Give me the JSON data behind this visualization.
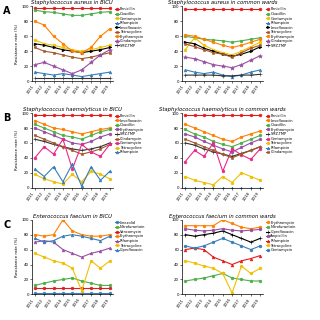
{
  "years": [
    "2011",
    "2012",
    "2013",
    "2014",
    "2015",
    "2016",
    "2017",
    "2018",
    "2019"
  ],
  "panel_A_BICU": {
    "title": "Staphylococcus aureus in BICU",
    "series": {
      "Penicillin": [
        98,
        98,
        98,
        98,
        98,
        98,
        98,
        98,
        98
      ],
      "Oxacillin": [
        95,
        93,
        92,
        90,
        88,
        88,
        90,
        92,
        93
      ],
      "Gentamycin": [
        55,
        50,
        48,
        45,
        42,
        40,
        42,
        45,
        48
      ],
      "Rifampicin": [
        12,
        10,
        8,
        10,
        8,
        6,
        8,
        10,
        12
      ],
      "Levofloxacin": [
        50,
        48,
        45,
        42,
        40,
        38,
        40,
        42,
        45
      ],
      "Tetracycline": [
        45,
        40,
        38,
        35,
        32,
        30,
        32,
        35,
        38
      ],
      "Erythromycin": [
        80,
        75,
        60,
        50,
        40,
        38,
        45,
        60,
        70
      ],
      "Clindamycin": [
        22,
        25,
        20,
        15,
        10,
        15,
        25,
        35,
        42
      ],
      "SMZ-TMP": [
        4,
        4,
        4,
        4,
        4,
        4,
        4,
        4,
        4
      ]
    },
    "colors": {
      "Penicillin": "#e41a1c",
      "Oxacillin": "#4daf4a",
      "Gentamycin": "#f0c000",
      "Rifampicin": "#377eb8",
      "Levofloxacin": "#000000",
      "Tetracycline": "#a65628",
      "Erythromycin": "#ff7f00",
      "Clindamycin": "#984ea3",
      "SMZ-TMP": "#333333"
    },
    "markers": {
      "Penicillin": "o",
      "Oxacillin": "o",
      "Gentamycin": "o",
      "Rifampicin": "^",
      "Levofloxacin": ">",
      "Tetracycline": "s",
      "Erythromycin": "o",
      "Clindamycin": "*",
      "SMZ-TMP": "+"
    },
    "legend_order": [
      "Penicillin",
      "Oxacillin",
      "Gentamycin",
      "Rifampicin",
      "Levofloxacin",
      "Tetracycline",
      "Erythromycin",
      "Clindamycin",
      "SMZ-TMP"
    ]
  },
  "panel_A_common": {
    "title": "Staphylococcus aureus in common wards",
    "series": {
      "Penicillin": [
        97,
        97,
        97,
        97,
        97,
        97,
        97,
        97,
        97
      ],
      "Oxacillin": [
        60,
        58,
        56,
        55,
        54,
        52,
        54,
        56,
        58
      ],
      "Gentamycin": [
        42,
        58,
        48,
        42,
        38,
        35,
        40,
        46,
        52
      ],
      "Rifampicin": [
        15,
        12,
        10,
        12,
        8,
        6,
        8,
        12,
        15
      ],
      "Levofloxacin": [
        52,
        50,
        44,
        40,
        36,
        33,
        36,
        40,
        46
      ],
      "Tetracycline": [
        50,
        46,
        42,
        38,
        36,
        32,
        38,
        44,
        48
      ],
      "Erythromycin": [
        62,
        60,
        56,
        52,
        48,
        45,
        48,
        52,
        56
      ],
      "Clindamycin": [
        32,
        30,
        26,
        22,
        20,
        18,
        22,
        28,
        34
      ],
      "SMZ-TMP": [
        8,
        8,
        8,
        8,
        7,
        7,
        8,
        8,
        9
      ]
    },
    "colors": {
      "Penicillin": "#e41a1c",
      "Oxacillin": "#4daf4a",
      "Gentamycin": "#f0c000",
      "Rifampicin": "#377eb8",
      "Levofloxacin": "#000000",
      "Tetracycline": "#a65628",
      "Erythromycin": "#ff7f00",
      "Clindamycin": "#984ea3",
      "SMZ-TMP": "#333333"
    },
    "markers": {
      "Penicillin": "o",
      "Oxacillin": "o",
      "Gentamycin": "o",
      "Rifampicin": "^",
      "Levofloxacin": ">",
      "Tetracycline": "s",
      "Erythromycin": "o",
      "Clindamycin": "*",
      "SMZ-TMP": "+"
    },
    "legend_order": [
      "Penicillin",
      "Oxacillin",
      "Gentamycin",
      "Rifampicin",
      "Levofloxacin",
      "Tetracycline",
      "Erythromycin",
      "Clindamycin",
      "SMZ-TMP"
    ]
  },
  "panel_B_BICU": {
    "title": "Staphylococcus haemolyticus in BICU",
    "series": {
      "Penicillin": [
        98,
        98,
        98,
        98,
        98,
        98,
        98,
        98,
        98
      ],
      "Levofloxacin": [
        90,
        85,
        80,
        78,
        75,
        72,
        75,
        78,
        80
      ],
      "Oxacillin": [
        85,
        80,
        75,
        70,
        68,
        65,
        70,
        75,
        78
      ],
      "Erythromycin": [
        80,
        75,
        70,
        65,
        60,
        58,
        62,
        68,
        72
      ],
      "SMZ-TMP": [
        65,
        62,
        58,
        55,
        52,
        50,
        52,
        55,
        60
      ],
      "Clindamycin": [
        70,
        65,
        60,
        55,
        50,
        45,
        48,
        52,
        58
      ],
      "Gentamycin": [
        40,
        55,
        45,
        65,
        25,
        58,
        48,
        42,
        58
      ],
      "Tetracycline": [
        18,
        12,
        8,
        5,
        18,
        8,
        22,
        18,
        12
      ],
      "Rifampicin": [
        25,
        15,
        28,
        8,
        32,
        2,
        28,
        10,
        22
      ]
    },
    "colors": {
      "Penicillin": "#e41a1c",
      "Levofloxacin": "#ff7f00",
      "Oxacillin": "#4daf4a",
      "Erythromycin": "#984ea3",
      "SMZ-TMP": "#333333",
      "Clindamycin": "#a65628",
      "Gentamycin": "#e7298a",
      "Tetracycline": "#f0c000",
      "Rifampicin": "#377eb8"
    },
    "markers": {
      "Penicillin": "o",
      "Levofloxacin": "o",
      "Oxacillin": "o",
      "Erythromycin": "o",
      "SMZ-TMP": "+",
      "Clindamycin": "s",
      "Gentamycin": "o",
      "Tetracycline": "o",
      "Rifampicin": "^"
    },
    "legend_order": [
      "Penicillin",
      "Levofloxacin",
      "Oxacillin",
      "Erythromycin",
      "SMZ-TMP",
      "Clindamycin",
      "Gentamycin",
      "Tetracycline",
      "Rifampicin"
    ]
  },
  "panel_B_common": {
    "title": "Staphylococcus haemolyticus in common wards",
    "series": {
      "Penicillin": [
        97,
        97,
        97,
        97,
        97,
        97,
        97,
        97,
        97
      ],
      "Levofloxacin": [
        85,
        80,
        75,
        70,
        65,
        62,
        68,
        72,
        76
      ],
      "Oxacillin": [
        78,
        72,
        68,
        62,
        58,
        55,
        60,
        65,
        70
      ],
      "Erythromycin": [
        72,
        68,
        62,
        57,
        52,
        48,
        54,
        60,
        65
      ],
      "SMZ-TMP": [
        60,
        57,
        52,
        48,
        45,
        42,
        46,
        50,
        55
      ],
      "Clindamycin": [
        65,
        60,
        55,
        50,
        45,
        40,
        45,
        50,
        55
      ],
      "Gentamycin": [
        35,
        50,
        42,
        60,
        22,
        52,
        44,
        38,
        52
      ],
      "Tetracycline": [
        15,
        10,
        7,
        4,
        15,
        7,
        20,
        15,
        10
      ],
      "Rifampicin": [
        0,
        0,
        0,
        0,
        0,
        0,
        0,
        0,
        0
      ]
    },
    "colors": {
      "Penicillin": "#e41a1c",
      "Levofloxacin": "#ff7f00",
      "Oxacillin": "#4daf4a",
      "Erythromycin": "#984ea3",
      "SMZ-TMP": "#333333",
      "Clindamycin": "#a65628",
      "Gentamycin": "#e7298a",
      "Tetracycline": "#f0c000",
      "Rifampicin": "#377eb8"
    },
    "markers": {
      "Penicillin": "o",
      "Levofloxacin": "o",
      "Oxacillin": "o",
      "Erythromycin": "o",
      "SMZ-TMP": "+",
      "Clindamycin": "s",
      "Gentamycin": "o",
      "Tetracycline": "o",
      "Rifampicin": "^"
    },
    "legend_order": [
      "Penicillin",
      "Levofloxacin",
      "Oxacillin",
      "Erythromycin",
      "SMZ-TMP",
      "Gentamycin",
      "Tetracycline",
      "Rifampicin",
      "Clindamycin"
    ]
  },
  "panel_C_BICU": {
    "title": "Enterococcus faecium in BICU",
    "series": {
      "Linezolid": [
        2,
        2,
        2,
        2,
        2,
        2,
        2,
        2,
        2
      ],
      "Nitrofurantoin": [
        12,
        15,
        18,
        20,
        22,
        18,
        15,
        12,
        12
      ],
      "Vancomycin": [
        8,
        8,
        8,
        8,
        8,
        8,
        8,
        8,
        8
      ],
      "Erythromycin": [
        80,
        78,
        80,
        100,
        85,
        80,
        78,
        78,
        80
      ],
      "Rifampicin": [
        70,
        72,
        70,
        60,
        55,
        50,
        55,
        58,
        62
      ],
      "Tetracycline": [
        55,
        50,
        45,
        42,
        35,
        5,
        45,
        35,
        45
      ],
      "Ciprofloxacin": [
        75,
        70,
        72,
        78,
        80,
        78,
        75,
        72,
        78
      ]
    },
    "colors": {
      "Linezolid": "#377eb8",
      "Nitrofurantoin": "#4daf4a",
      "Vancomycin": "#e41a1c",
      "Erythromycin": "#ff7f00",
      "Rifampicin": "#984ea3",
      "Tetracycline": "#f0c000",
      "Ciprofloxacin": "#377eb8"
    },
    "markers": {
      "Linezolid": "o",
      "Nitrofurantoin": "o",
      "Vancomycin": "o",
      "Erythromycin": "o",
      "Rifampicin": "^",
      "Tetracycline": "o",
      "Ciprofloxacin": "^"
    },
    "legend_order": [
      "Linezolid",
      "Nitrofurantoin",
      "Vancomycin",
      "Erythromycin",
      "Rifampicin",
      "Tetracycline",
      "Ciprofloxacin"
    ]
  },
  "panel_C_common": {
    "title": "Enterococcus faecium in common wards",
    "series": {
      "Erythromycin": [
        92,
        92,
        92,
        92,
        100,
        95,
        90,
        88,
        90
      ],
      "Nitrofurantoin": [
        18,
        20,
        22,
        25,
        28,
        22,
        20,
        18,
        18
      ],
      "Ciprofloxacin": [
        80,
        78,
        80,
        82,
        85,
        80,
        75,
        70,
        75
      ],
      "Ampicillin": [
        88,
        86,
        85,
        86,
        88,
        86,
        85,
        86,
        87
      ],
      "Rifampicin": [
        60,
        62,
        60,
        50,
        45,
        40,
        45,
        48,
        52
      ],
      "Tetracycline": [
        45,
        42,
        38,
        35,
        28,
        2,
        38,
        28,
        35
      ],
      "Gentamycin": [
        65,
        62,
        65,
        70,
        75,
        70,
        65,
        60,
        65
      ]
    },
    "colors": {
      "Erythromycin": "#ff7f00",
      "Nitrofurantoin": "#4daf4a",
      "Ciprofloxacin": "#000000",
      "Ampicillin": "#984ea3",
      "Rifampicin": "#e41a1c",
      "Tetracycline": "#f0c000",
      "Gentamycin": "#377eb8"
    },
    "markers": {
      "Erythromycin": "o",
      "Nitrofurantoin": "o",
      "Ciprofloxacin": "+",
      "Ampicillin": "o",
      "Rifampicin": "^",
      "Tetracycline": "o",
      "Gentamycin": "o"
    },
    "legend_order": [
      "Erythromycin",
      "Nitrofurantoin",
      "Ciprofloxacin",
      "Ampicillin",
      "Rifampicin",
      "Tetracycline",
      "Gentamycin"
    ]
  },
  "panel_labels": [
    "A",
    "B",
    "C"
  ],
  "ylim": [
    0,
    100
  ],
  "yticks": [
    0,
    20,
    40,
    60,
    80,
    100
  ],
  "ylabel": "Resistance rate (%)"
}
